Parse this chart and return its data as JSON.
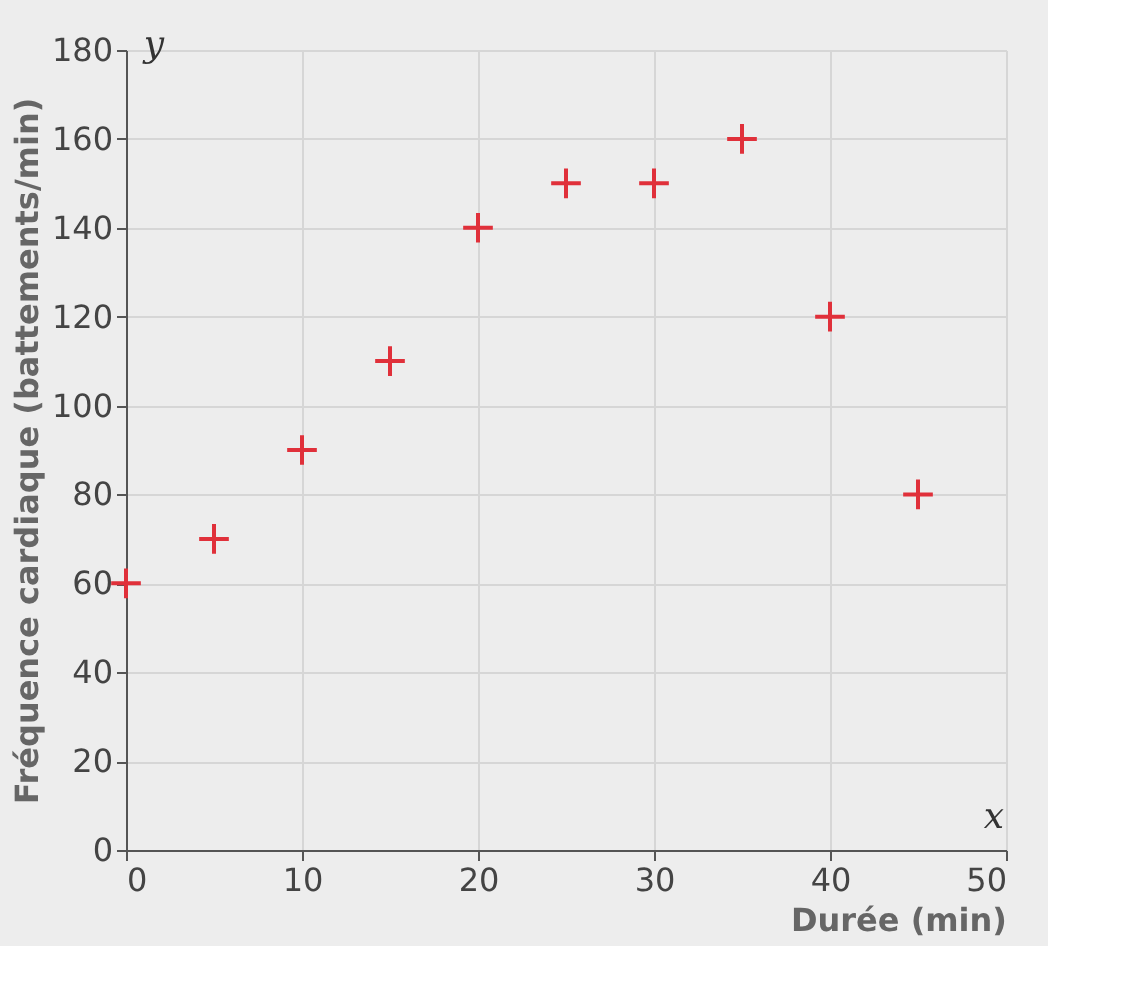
{
  "chart_data": {
    "type": "scatter",
    "xlabel": "Durée (min)",
    "ylabel": "Fréquence cardiaque (battements/min)",
    "x": [
      0,
      5,
      10,
      15,
      20,
      25,
      30,
      35,
      40,
      45
    ],
    "series": [
      {
        "color": "#e0303a",
        "values": [
          60,
          70,
          90,
          110,
          140,
          150,
          150,
          160,
          120,
          80
        ]
      }
    ],
    "xlim": [
      0,
      50
    ],
    "ylim": [
      0,
      180
    ],
    "xticks": [
      0,
      10,
      20,
      30,
      40,
      50
    ],
    "yticks": [
      0,
      20,
      40,
      60,
      80,
      100,
      120,
      140,
      160,
      180
    ],
    "grid": true,
    "marker": "cross",
    "annotations": [
      "x",
      "y"
    ]
  }
}
